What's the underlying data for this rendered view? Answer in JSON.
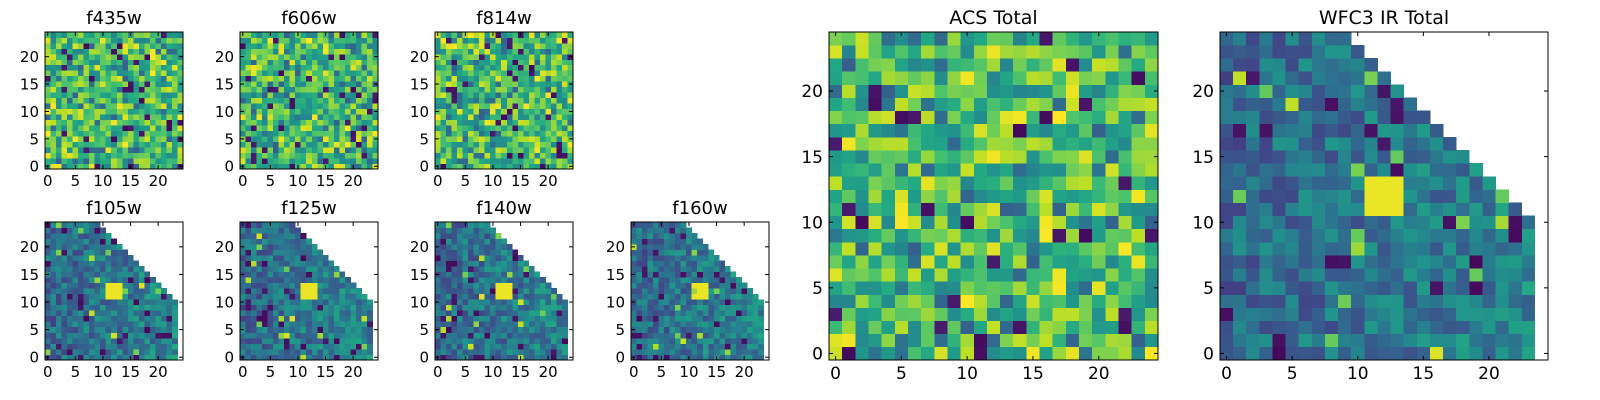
{
  "figure": {
    "layout": "two rows of small panels on the left, two large panels on the right"
  },
  "chart_data": [
    {
      "type": "heatmap",
      "title": "f435w",
      "panel": "small",
      "coverage": "full",
      "colormap": "viridis",
      "grid": false,
      "xlim": [
        -0.5,
        24.5
      ],
      "ylim": [
        -0.5,
        24.5
      ],
      "xticks": [
        0,
        5,
        10,
        15,
        20
      ],
      "yticks": [
        0,
        5,
        10,
        15,
        20
      ],
      "seed": 11
    },
    {
      "type": "heatmap",
      "title": "f606w",
      "panel": "small",
      "coverage": "full",
      "colormap": "viridis",
      "grid": false,
      "xlim": [
        -0.5,
        24.5
      ],
      "ylim": [
        -0.5,
        24.5
      ],
      "xticks": [
        0,
        5,
        10,
        15,
        20
      ],
      "yticks": [
        0,
        5,
        10,
        15,
        20
      ],
      "seed": 23
    },
    {
      "type": "heatmap",
      "title": "f814w",
      "panel": "small",
      "coverage": "full",
      "colormap": "viridis",
      "grid": false,
      "xlim": [
        -0.5,
        24.5
      ],
      "ylim": [
        -0.5,
        24.5
      ],
      "xticks": [
        0,
        5,
        10,
        15,
        20
      ],
      "yticks": [
        0,
        5,
        10,
        15,
        20
      ],
      "seed": 37
    },
    {
      "type": "heatmap",
      "title": "f105w",
      "panel": "small",
      "coverage": "triangle",
      "colormap": "viridis",
      "grid": false,
      "xlim": [
        -0.5,
        24.5
      ],
      "ylim": [
        -0.5,
        24.5
      ],
      "xticks": [
        0,
        5,
        10,
        15,
        20
      ],
      "yticks": [
        0,
        5,
        10,
        15,
        20
      ],
      "seed": 41
    },
    {
      "type": "heatmap",
      "title": "f125w",
      "panel": "small",
      "coverage": "triangle",
      "colormap": "viridis",
      "grid": false,
      "xlim": [
        -0.5,
        24.5
      ],
      "ylim": [
        -0.5,
        24.5
      ],
      "xticks": [
        0,
        5,
        10,
        15,
        20
      ],
      "yticks": [
        0,
        5,
        10,
        15,
        20
      ],
      "seed": 53
    },
    {
      "type": "heatmap",
      "title": "f140w",
      "panel": "small",
      "coverage": "triangle",
      "colormap": "viridis",
      "grid": false,
      "xlim": [
        -0.5,
        24.5
      ],
      "ylim": [
        -0.5,
        24.5
      ],
      "xticks": [
        0,
        5,
        10,
        15,
        20
      ],
      "yticks": [
        0,
        5,
        10,
        15,
        20
      ],
      "seed": 67
    },
    {
      "type": "heatmap",
      "title": "f160w",
      "panel": "small",
      "coverage": "triangle",
      "colormap": "viridis",
      "grid": false,
      "xlim": [
        -0.5,
        24.5
      ],
      "ylim": [
        -0.5,
        24.5
      ],
      "xticks": [
        0,
        5,
        10,
        15,
        20
      ],
      "yticks": [
        0,
        5,
        10,
        15,
        20
      ],
      "seed": 79
    },
    {
      "type": "heatmap",
      "title": "ACS Total",
      "panel": "large",
      "coverage": "full",
      "colormap": "viridis",
      "grid": false,
      "xlim": [
        -0.5,
        24.5
      ],
      "ylim": [
        -0.5,
        24.5
      ],
      "xticks": [
        0,
        5,
        10,
        15,
        20
      ],
      "yticks": [
        0,
        5,
        10,
        15,
        20
      ],
      "seed": 97
    },
    {
      "type": "heatmap",
      "title": "WFC3 IR Total",
      "panel": "large",
      "coverage": "triangle",
      "colormap": "viridis",
      "grid": false,
      "xlim": [
        -0.5,
        24.5
      ],
      "ylim": [
        -0.5,
        24.5
      ],
      "xticks": [
        0,
        5,
        10,
        15,
        20
      ],
      "yticks": [
        0,
        5,
        10,
        15,
        20
      ],
      "seed": 101
    }
  ]
}
